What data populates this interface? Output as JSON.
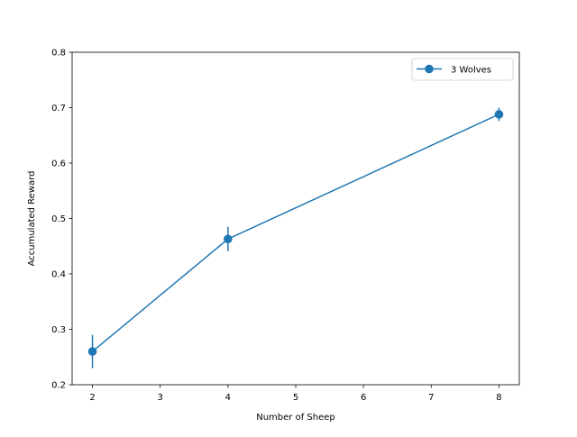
{
  "chart_data": {
    "type": "line",
    "title": "",
    "xlabel": "Number of Sheep",
    "ylabel": "Accumulated Reward",
    "xlim": [
      1.7,
      8.3
    ],
    "ylim": [
      0.2,
      0.8
    ],
    "xticks": [
      2,
      3,
      4,
      5,
      6,
      7,
      8
    ],
    "yticks": [
      0.2,
      0.3,
      0.4,
      0.5,
      0.6,
      0.7,
      0.8
    ],
    "grid": false,
    "legend_position": "top-right",
    "series": [
      {
        "name": "3 Wolves",
        "color": "#1f77b4",
        "marker": "circle",
        "x": [
          2,
          4,
          8
        ],
        "y": [
          0.26,
          0.463,
          0.688
        ],
        "yerr": [
          0.03,
          0.022,
          0.012
        ]
      }
    ]
  }
}
